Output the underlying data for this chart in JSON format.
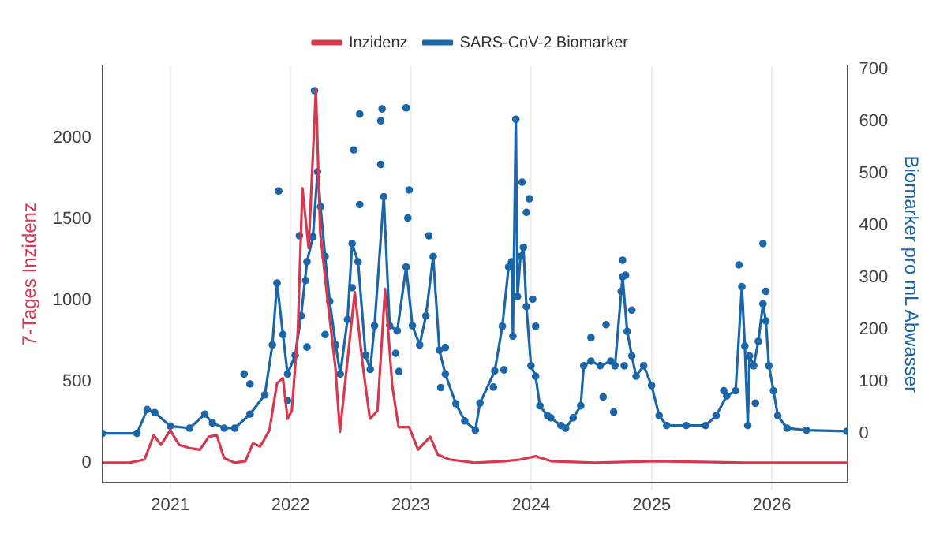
{
  "chart_data": {
    "type": "line",
    "xlabel": null,
    "ylabel": "7-Tages Inzidenz",
    "y2label": "Biomarker pro mL Abwasser",
    "legend": "top",
    "grid": "x",
    "xlim": [
      "2020-06-09",
      "2026-08-20"
    ],
    "xticks": [
      {
        "value": "2021-01-01",
        "label": "2021"
      },
      {
        "value": "2022-01-01",
        "label": "2022"
      },
      {
        "value": "2023-01-01",
        "label": "2023"
      },
      {
        "value": "2024-01-01",
        "label": "2024"
      },
      {
        "value": "2025-01-01",
        "label": "2025"
      },
      {
        "value": "2026-01-01",
        "label": "2026"
      }
    ],
    "ylim": [
      -120,
      2440
    ],
    "yticks": [
      0,
      500,
      1000,
      1500,
      2000
    ],
    "y2lim": [
      -94,
      706
    ],
    "y2ticks": [
      0,
      100,
      200,
      300,
      400,
      500,
      600,
      700
    ],
    "series": [
      {
        "name": "Inzidenz",
        "color": "#d6394f",
        "marker": "none",
        "x": [
          "2020-06-09",
          "2020-08-30",
          "2020-10-15",
          "2020-11-12",
          "2020-12-04",
          "2021-01-01",
          "2021-01-28",
          "2021-03-01",
          "2021-04-01",
          "2021-04-28",
          "2021-05-22",
          "2021-06-13",
          "2021-07-15",
          "2021-08-17",
          "2021-09-09",
          "2021-10-01",
          "2021-10-29",
          "2021-11-21",
          "2021-12-09",
          "2021-12-23",
          "2022-01-05",
          "2022-01-23",
          "2022-02-06",
          "2022-02-25",
          "2022-03-19",
          "2022-04-01",
          "2022-04-24",
          "2022-05-17",
          "2022-05-31",
          "2022-06-13",
          "2022-07-15",
          "2022-08-07",
          "2022-08-30",
          "2022-09-22",
          "2022-10-15",
          "2022-11-06",
          "2022-11-25",
          "2022-12-27",
          "2023-01-23",
          "2023-03-01",
          "2023-03-24",
          "2023-04-28",
          "2023-07-15",
          "2023-10-15",
          "2023-11-30",
          "2024-01-15",
          "2024-03-01",
          "2024-07-15",
          "2025-01-15",
          "2025-10-15",
          "2026-08-20"
        ],
        "values": [
          0,
          0,
          20,
          170,
          110,
          200,
          110,
          90,
          80,
          160,
          170,
          30,
          0,
          10,
          120,
          100,
          200,
          490,
          520,
          270,
          320,
          800,
          1690,
          1320,
          2300,
          1420,
          990,
          590,
          190,
          440,
          1050,
          620,
          270,
          320,
          1070,
          470,
          220,
          220,
          80,
          160,
          50,
          20,
          0,
          10,
          20,
          40,
          10,
          0,
          10,
          0,
          0
        ]
      },
      {
        "name": "SARS-CoV-2 Biomarker",
        "color": "#1a66a8",
        "axis": "y2",
        "marker": "circle",
        "x": [
          "2020-06-09",
          "2020-09-22",
          "2020-10-23",
          "2020-11-15",
          "2021-01-01",
          "2021-03-01",
          "2021-04-16",
          "2021-05-09",
          "2021-06-14",
          "2021-07-16",
          "2021-08-31",
          "2021-10-15",
          "2021-11-07",
          "2021-11-21",
          "2021-12-09",
          "2021-12-23",
          "2022-01-15",
          "2022-02-02",
          "2022-02-20",
          "2022-03-10",
          "2022-03-24",
          "2022-04-02",
          "2022-04-16",
          "2022-04-30",
          "2022-05-18",
          "2022-06-01",
          "2022-06-23",
          "2022-07-07",
          "2022-07-25",
          "2022-08-17",
          "2022-08-31",
          "2022-09-13",
          "2022-10-11",
          "2022-10-29",
          "2022-11-21",
          "2022-12-18",
          "2023-01-06",
          "2023-01-28",
          "2023-02-16",
          "2023-03-10",
          "2023-03-29",
          "2023-04-16",
          "2023-05-18",
          "2023-06-14",
          "2023-07-16",
          "2023-07-30",
          "2023-09-13",
          "2023-10-06",
          "2023-10-25",
          "2023-11-03",
          "2023-11-07",
          "2023-11-16",
          "2023-11-21",
          "2023-11-30",
          "2023-12-09",
          "2023-12-18",
          "2024-01-01",
          "2024-01-15",
          "2024-01-28",
          "2024-02-20",
          "2024-03-01",
          "2024-04-01",
          "2024-04-15",
          "2024-05-08",
          "2024-05-31",
          "2024-06-09",
          "2024-07-01",
          "2024-07-29",
          "2024-08-30",
          "2024-09-12",
          "2024-10-01",
          "2024-10-05",
          "2024-10-19",
          "2024-11-02",
          "2024-11-15",
          "2024-12-08",
          "2025-01-01",
          "2025-01-24",
          "2025-02-16",
          "2025-04-16",
          "2025-06-14",
          "2025-07-16",
          "2025-08-17",
          "2025-09-13",
          "2025-10-02",
          "2025-10-11",
          "2025-10-20",
          "2025-10-25",
          "2025-11-07",
          "2025-11-21",
          "2025-12-05",
          "2025-12-14",
          "2025-12-23",
          "2026-01-06",
          "2026-01-19",
          "2026-02-16",
          "2026-04-16",
          "2026-08-17"
        ],
        "values": [
          0,
          0,
          46,
          40,
          14,
          10,
          37,
          20,
          10,
          10,
          37,
          74,
          170,
          289,
          190,
          114,
          150,
          226,
          330,
          378,
          503,
          436,
          340,
          254,
          170,
          114,
          219,
          365,
          330,
          150,
          123,
          207,
          455,
          207,
          197,
          320,
          207,
          170,
          226,
          340,
          160,
          114,
          57,
          24,
          6,
          58,
          120,
          206,
          320,
          330,
          187,
          604,
          263,
          340,
          358,
          244,
          130,
          110,
          53,
          34,
          30,
          15,
          10,
          30,
          53,
          130,
          139,
          130,
          139,
          130,
          273,
          301,
          196,
          149,
          110,
          130,
          92,
          34,
          15,
          15,
          15,
          34,
          72,
          82,
          282,
          168,
          15,
          149,
          130,
          177,
          249,
          216,
          130,
          82,
          34,
          10,
          6,
          4
        ]
      },
      {
        "color": "#1a66a8",
        "type": "scatter",
        "axis": "y2",
        "marker": "circle",
        "x": [
          "2021-08-13",
          "2021-08-31",
          "2021-11-26",
          "2021-12-23",
          "2022-01-28",
          "2022-02-16",
          "2022-02-20",
          "2022-03-15",
          "2022-03-19",
          "2022-04-16",
          "2022-07-07",
          "2022-07-12",
          "2022-07-30",
          "2022-07-30",
          "2022-10-02",
          "2022-10-02",
          "2022-10-06",
          "2022-11-16",
          "2022-11-26",
          "2022-12-18",
          "2022-12-23",
          "2022-12-27",
          "2023-02-25",
          "2023-04-02",
          "2023-04-16",
          "2023-09-09",
          "2023-10-11",
          "2023-12-05",
          "2023-12-18",
          "2023-12-27",
          "2024-01-06",
          "2024-01-15",
          "2024-07-01",
          "2024-08-07",
          "2024-08-16",
          "2024-09-08",
          "2024-10-05",
          "2024-10-10",
          "2024-10-14",
          "2024-11-02",
          "2025-08-08",
          "2025-09-23",
          "2025-11-12",
          "2025-12-05",
          "2025-12-14"
        ],
        "values": [
          114,
          95,
          466,
          63,
          380,
          294,
          166,
          659,
          null,
          190,
          280,
          545,
          614,
          440,
          601,
          517,
          624,
          154,
          119,
          626,
          414,
          468,
          380,
          88,
          165,
          89,
          122,
          483,
          425,
          451,
          258,
          206,
          184,
          70,
          209,
          41,
          333,
          130,
          304,
          237,
          82,
          324,
          58,
          365,
          273
        ]
      }
    ]
  }
}
